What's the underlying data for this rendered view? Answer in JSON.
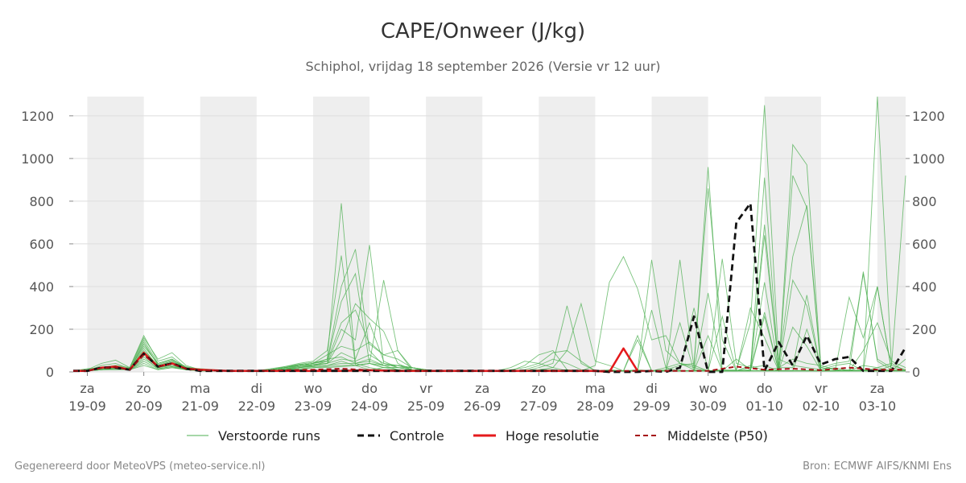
{
  "header": {
    "title": "CAPE/Onweer (J/kg)",
    "subtitle": "Schiphol, vrijdag 18 september 2026 (Versie vr 12 uur)"
  },
  "footer": {
    "left": "Gegenereerd door MeteoVPS (meteo-service.nl)",
    "right": "Bron: ECMWF AIFS/KNMI Ens"
  },
  "colors": {
    "ensemble": "#4caf50",
    "control": "#111111",
    "hires": "#e41a1c",
    "median": "#a50f15",
    "weekend_band": "#eeeeee",
    "grid": "#dddddd"
  },
  "chart_data": {
    "type": "line",
    "title": "CAPE/Onweer (J/kg)",
    "subtitle": "Schiphol, vrijdag 18 september 2026 (Versie vr 12 uur)",
    "ylim": [
      0,
      1290
    ],
    "yticks": [
      0,
      200,
      400,
      600,
      800,
      1000,
      1200
    ],
    "y_axes": "left-and-right",
    "grid": "horizontal",
    "legend_position": "bottom",
    "x_range_days": [
      -0.25,
      14.5
    ],
    "day_ticks": [
      {
        "day": 0,
        "weekday": "za",
        "date": "19-09"
      },
      {
        "day": 1,
        "weekday": "zo",
        "date": "20-09"
      },
      {
        "day": 2,
        "weekday": "ma",
        "date": "21-09"
      },
      {
        "day": 3,
        "weekday": "di",
        "date": "22-09"
      },
      {
        "day": 4,
        "weekday": "wo",
        "date": "23-09"
      },
      {
        "day": 5,
        "weekday": "do",
        "date": "24-09"
      },
      {
        "day": 6,
        "weekday": "vr",
        "date": "25-09"
      },
      {
        "day": 7,
        "weekday": "za",
        "date": "26-09"
      },
      {
        "day": 8,
        "weekday": "zo",
        "date": "27-09"
      },
      {
        "day": 9,
        "weekday": "ma",
        "date": "28-09"
      },
      {
        "day": 10,
        "weekday": "di",
        "date": "29-09"
      },
      {
        "day": 11,
        "weekday": "wo",
        "date": "30-09"
      },
      {
        "day": 12,
        "weekday": "do",
        "date": "01-10"
      },
      {
        "day": 13,
        "weekday": "vr",
        "date": "02-10"
      },
      {
        "day": 14,
        "weekday": "za",
        "date": "03-10"
      }
    ],
    "shaded_day_bands": [
      [
        0,
        1
      ],
      [
        2,
        3
      ],
      [
        4,
        5
      ],
      [
        6,
        7
      ],
      [
        8,
        9
      ],
      [
        10,
        11
      ],
      [
        12,
        13
      ],
      [
        14,
        14.5
      ]
    ],
    "legend": [
      {
        "key": "ensemble",
        "label": "Verstoorde runs",
        "style": "thin"
      },
      {
        "key": "control",
        "label": "Controle",
        "style": "dashed"
      },
      {
        "key": "hires",
        "label": "Hoge resolutie",
        "style": "solid"
      },
      {
        "key": "median",
        "label": "Middelste (P50)",
        "style": "dashed-thin"
      }
    ],
    "control_series": {
      "name": "Controle",
      "x": [
        -0.25,
        0,
        0.25,
        0.5,
        0.75,
        1,
        1.25,
        1.5,
        1.75,
        2,
        2.5,
        3,
        3.5,
        4,
        4.5,
        5,
        5.5,
        6,
        6.5,
        7,
        7.5,
        8,
        8.5,
        9,
        9.25,
        9.5,
        9.75,
        10,
        10.25,
        10.5,
        10.75,
        11,
        11.25,
        11.5,
        11.75,
        12,
        12.25,
        12.5,
        12.75,
        13,
        13.25,
        13.5,
        13.75,
        14,
        14.25,
        14.5
      ],
      "y": [
        5,
        5,
        20,
        20,
        10,
        85,
        25,
        40,
        15,
        5,
        5,
        5,
        5,
        5,
        5,
        5,
        5,
        5,
        5,
        5,
        5,
        5,
        5,
        5,
        0,
        0,
        0,
        5,
        0,
        20,
        260,
        0,
        0,
        700,
        790,
        5,
        140,
        30,
        170,
        35,
        60,
        70,
        5,
        5,
        5,
        115
      ]
    },
    "hires_series": {
      "name": "Hoge resolutie",
      "x": [
        -0.25,
        0,
        0.25,
        0.5,
        0.75,
        1,
        1.25,
        1.5,
        1.75,
        2,
        2.5,
        3,
        3.5,
        4,
        4.5,
        5,
        5.5,
        6,
        6.5,
        7,
        7.5,
        8,
        8.5,
        9,
        9.25,
        9.5,
        9.75
      ],
      "y": [
        5,
        5,
        20,
        25,
        10,
        90,
        25,
        40,
        15,
        10,
        5,
        5,
        5,
        5,
        5,
        8,
        5,
        5,
        5,
        5,
        5,
        5,
        5,
        5,
        0,
        110,
        5
      ]
    },
    "median_series": {
      "name": "Middelste (P50)",
      "x": [
        -0.25,
        0,
        0.25,
        0.5,
        0.75,
        1,
        1.25,
        1.5,
        1.75,
        2,
        2.5,
        3,
        3.5,
        4,
        4.5,
        5,
        5.5,
        6,
        6.5,
        7,
        7.5,
        8,
        8.5,
        9,
        9.5,
        10,
        10.5,
        11,
        11.5,
        12,
        12.5,
        13,
        13.5,
        14,
        14.5
      ],
      "y": [
        5,
        5,
        18,
        22,
        10,
        80,
        25,
        38,
        15,
        8,
        5,
        5,
        8,
        10,
        15,
        8,
        5,
        5,
        5,
        5,
        5,
        5,
        5,
        5,
        5,
        5,
        5,
        5,
        25,
        10,
        15,
        8,
        20,
        10,
        10
      ]
    },
    "ensemble_x": [
      -0.25,
      0,
      0.25,
      0.5,
      0.75,
      1,
      1.25,
      1.5,
      1.75,
      2,
      2.25,
      2.5,
      2.75,
      3,
      3.25,
      3.5,
      3.75,
      4,
      4.25,
      4.5,
      4.75,
      5,
      5.25,
      5.5,
      5.75,
      6,
      6.25,
      6.5,
      6.75,
      7,
      7.25,
      7.5,
      7.75,
      8,
      8.25,
      8.5,
      8.75,
      9,
      9.25,
      9.5,
      9.75,
      10,
      10.25,
      10.5,
      10.75,
      11,
      11.25,
      11.5,
      11.75,
      12,
      12.25,
      12.5,
      12.75,
      13,
      13.25,
      13.5,
      13.75,
      14,
      14.25,
      14.5
    ],
    "ensemble_series": [
      {
        "y": [
          5,
          10,
          40,
          55,
          20,
          170,
          50,
          70,
          20,
          15,
          10,
          5,
          5,
          5,
          10,
          20,
          30,
          40,
          60,
          790,
          40,
          20,
          10,
          10,
          5,
          5,
          5,
          5,
          5,
          5,
          5,
          5,
          5,
          5,
          5,
          10,
          5,
          30,
          420,
          540,
          390,
          150,
          170,
          40,
          10,
          5,
          10,
          10,
          230,
          1250,
          60,
          30,
          20,
          10,
          30,
          40,
          5,
          1290,
          30,
          10
        ]
      },
      {
        "y": [
          5,
          5,
          30,
          40,
          15,
          150,
          40,
          60,
          20,
          10,
          5,
          5,
          5,
          5,
          15,
          25,
          40,
          50,
          100,
          545,
          30,
          10,
          20,
          10,
          5,
          5,
          5,
          5,
          5,
          5,
          5,
          5,
          5,
          20,
          40,
          310,
          40,
          5,
          10,
          5,
          5,
          525,
          100,
          40,
          20,
          960,
          5,
          5,
          20,
          30,
          5,
          1065,
          970,
          20,
          10,
          5,
          10,
          5,
          30,
          920
        ]
      },
      {
        "y": [
          5,
          15,
          20,
          30,
          20,
          160,
          60,
          90,
          30,
          10,
          5,
          5,
          5,
          5,
          10,
          20,
          35,
          30,
          50,
          400,
          575,
          100,
          30,
          10,
          5,
          5,
          5,
          5,
          5,
          5,
          5,
          5,
          5,
          10,
          20,
          100,
          320,
          50,
          30,
          5,
          10,
          5,
          10,
          30,
          40,
          860,
          150,
          5,
          10,
          910,
          5,
          920,
          770,
          10,
          20,
          5,
          30,
          20,
          40,
          5
        ]
      },
      {
        "y": [
          5,
          10,
          15,
          25,
          10,
          140,
          30,
          50,
          20,
          10,
          5,
          5,
          5,
          5,
          5,
          10,
          20,
          30,
          40,
          200,
          150,
          595,
          40,
          20,
          10,
          5,
          5,
          5,
          5,
          5,
          5,
          5,
          10,
          30,
          60,
          40,
          10,
          5,
          5,
          5,
          5,
          5,
          5,
          525,
          20,
          5,
          530,
          40,
          20,
          640,
          30,
          540,
          780,
          20,
          40,
          50,
          460,
          60,
          20,
          5
        ]
      },
      {
        "y": [
          5,
          5,
          10,
          20,
          15,
          120,
          40,
          60,
          15,
          10,
          5,
          5,
          5,
          5,
          10,
          20,
          30,
          40,
          50,
          330,
          460,
          40,
          430,
          100,
          10,
          5,
          5,
          5,
          5,
          5,
          5,
          10,
          20,
          40,
          90,
          100,
          50,
          5,
          5,
          5,
          5,
          5,
          20,
          40,
          30,
          5,
          5,
          60,
          10,
          690,
          20,
          60,
          40,
          30,
          10,
          5,
          100,
          230,
          50,
          20
        ]
      },
      {
        "y": [
          5,
          10,
          20,
          30,
          10,
          130,
          35,
          55,
          25,
          10,
          5,
          5,
          5,
          5,
          10,
          25,
          35,
          45,
          50,
          230,
          290,
          130,
          80,
          60,
          20,
          5,
          5,
          5,
          5,
          5,
          5,
          5,
          5,
          10,
          10,
          5,
          5,
          5,
          5,
          5,
          170,
          5,
          5,
          5,
          5,
          370,
          5,
          5,
          5,
          280,
          5,
          430,
          310,
          5,
          5,
          5,
          470,
          50,
          10,
          5
        ]
      },
      {
        "y": [
          5,
          5,
          15,
          20,
          10,
          110,
          25,
          45,
          20,
          10,
          5,
          5,
          5,
          5,
          5,
          15,
          25,
          35,
          40,
          150,
          320,
          250,
          190,
          40,
          10,
          5,
          5,
          5,
          5,
          5,
          5,
          5,
          5,
          5,
          5,
          5,
          5,
          5,
          5,
          5,
          5,
          290,
          20,
          5,
          5,
          5,
          5,
          5,
          300,
          160,
          5,
          210,
          120,
          5,
          5,
          350,
          160,
          400,
          5,
          60
        ]
      },
      {
        "y": [
          5,
          10,
          20,
          25,
          15,
          100,
          30,
          50,
          15,
          5,
          5,
          5,
          5,
          5,
          10,
          20,
          30,
          40,
          80,
          120,
          100,
          140,
          80,
          100,
          20,
          5,
          5,
          5,
          5,
          5,
          5,
          5,
          5,
          5,
          5,
          5,
          5,
          5,
          5,
          5,
          150,
          5,
          5,
          230,
          5,
          5,
          260,
          5,
          30,
          5,
          20,
          20,
          360,
          5,
          5,
          10,
          5,
          20,
          5,
          5
        ]
      },
      {
        "y": [
          5,
          5,
          10,
          20,
          10,
          90,
          20,
          40,
          20,
          10,
          5,
          5,
          5,
          5,
          5,
          15,
          20,
          30,
          40,
          90,
          60,
          230,
          50,
          20,
          10,
          5,
          5,
          5,
          5,
          5,
          5,
          5,
          5,
          5,
          5,
          5,
          5,
          5,
          5,
          5,
          5,
          5,
          5,
          5,
          5,
          170,
          5,
          5,
          5,
          420,
          5,
          5,
          200,
          5,
          5,
          5,
          5,
          400,
          5,
          5
        ]
      },
      {
        "y": [
          5,
          10,
          15,
          20,
          15,
          80,
          20,
          30,
          10,
          10,
          5,
          5,
          5,
          5,
          10,
          20,
          30,
          40,
          60,
          70,
          40,
          60,
          30,
          30,
          10,
          5,
          5,
          5,
          5,
          5,
          5,
          5,
          5,
          5,
          5,
          5,
          5,
          5,
          5,
          5,
          5,
          5,
          5,
          5,
          300,
          5,
          5,
          5,
          5,
          5,
          5,
          5,
          5,
          5,
          5,
          5,
          5,
          5,
          5,
          5
        ]
      },
      {
        "y": [
          5,
          5,
          10,
          15,
          10,
          70,
          15,
          25,
          10,
          5,
          5,
          5,
          5,
          5,
          5,
          10,
          20,
          25,
          30,
          50,
          30,
          40,
          20,
          20,
          10,
          5,
          5,
          5,
          5,
          5,
          5,
          5,
          5,
          5,
          5,
          5,
          5,
          5,
          5,
          5,
          5,
          5,
          5,
          5,
          5,
          5,
          5,
          5,
          5,
          260,
          5,
          5,
          5,
          5,
          5,
          5,
          5,
          5,
          5,
          5
        ]
      },
      {
        "y": [
          5,
          10,
          20,
          15,
          10,
          60,
          20,
          30,
          15,
          10,
          5,
          5,
          5,
          5,
          10,
          20,
          25,
          30,
          40,
          60,
          50,
          80,
          40,
          30,
          20,
          10,
          5,
          5,
          5,
          5,
          5,
          5,
          5,
          5,
          5,
          5,
          5,
          5,
          5,
          5,
          5,
          5,
          5,
          5,
          5,
          5,
          5,
          5,
          5,
          5,
          5,
          5,
          5,
          5,
          5,
          5,
          5,
          5,
          5,
          5
        ]
      },
      {
        "y": [
          5,
          5,
          15,
          20,
          10,
          50,
          15,
          25,
          10,
          5,
          5,
          5,
          5,
          5,
          5,
          15,
          20,
          25,
          30,
          40,
          40,
          50,
          30,
          30,
          20,
          10,
          5,
          5,
          5,
          5,
          5,
          20,
          50,
          40,
          20,
          5,
          5,
          5,
          5,
          5,
          5,
          5,
          5,
          5,
          5,
          5,
          5,
          5,
          5,
          5,
          5,
          5,
          5,
          5,
          5,
          5,
          5,
          5,
          5,
          5
        ]
      },
      {
        "y": [
          5,
          10,
          10,
          15,
          10,
          40,
          10,
          20,
          10,
          5,
          5,
          5,
          5,
          5,
          10,
          10,
          15,
          20,
          25,
          30,
          30,
          40,
          30,
          30,
          20,
          10,
          5,
          5,
          5,
          5,
          5,
          5,
          30,
          80,
          100,
          10,
          5,
          5,
          5,
          5,
          5,
          5,
          5,
          5,
          5,
          5,
          5,
          5,
          5,
          5,
          5,
          5,
          5,
          5,
          5,
          5,
          5,
          5,
          5,
          5
        ]
      },
      {
        "y": [
          5,
          5,
          10,
          10,
          10,
          30,
          10,
          20,
          10,
          5,
          5,
          5,
          5,
          5,
          5,
          10,
          10,
          20,
          20,
          25,
          30,
          40,
          20,
          20,
          20,
          10,
          5,
          5,
          5,
          5,
          5,
          5,
          5,
          5,
          5,
          5,
          5,
          5,
          5,
          5,
          5,
          5,
          5,
          5,
          5,
          5,
          5,
          5,
          5,
          5,
          5,
          5,
          5,
          5,
          5,
          5,
          5,
          5,
          5,
          5
        ]
      }
    ]
  }
}
